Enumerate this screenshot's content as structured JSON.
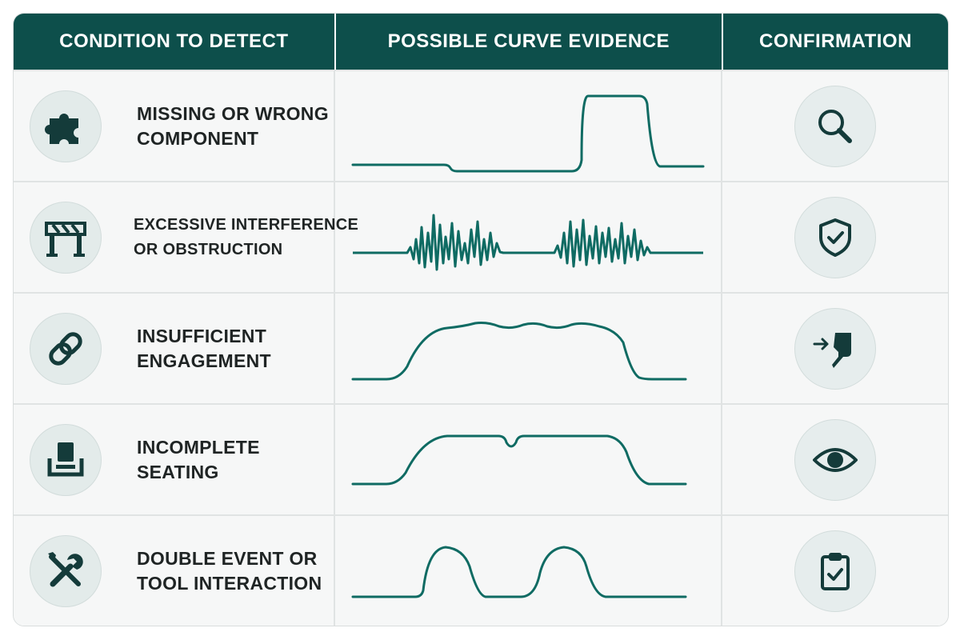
{
  "colors": {
    "header_bg": "#0d4f4b",
    "accent": "#0f6b63",
    "icon_dark": "#143b3a",
    "row_bg": "#f6f7f7"
  },
  "headers": {
    "condition": "CONDITION TO DETECT",
    "evidence": "POSSIBLE CURVE EVIDENCE",
    "confirmation": "CONFIRMATION"
  },
  "rows": [
    {
      "icon": "puzzle-piece-icon",
      "label_lines": [
        "MISSING OR WRONG",
        "COMPONENT"
      ],
      "curve": "step-up-plateau",
      "confirm_icon": "magnifier-icon"
    },
    {
      "icon": "barrier-icon",
      "label_lines": [
        "EXCESSIVE INTERFERENCE",
        "OR OBSTRUCTION"
      ],
      "curve": "noisy-bursts",
      "confirm_icon": "shield-check-icon"
    },
    {
      "icon": "chain-link-icon",
      "label_lines": [
        "INSUFFICIENT",
        "ENGAGEMENT"
      ],
      "curve": "wavy-plateau",
      "confirm_icon": "insert-arrow-icon"
    },
    {
      "icon": "seat-icon",
      "label_lines": [
        "INCOMPLETE",
        "SEATING"
      ],
      "curve": "plateau-with-dip",
      "confirm_icon": "eye-icon"
    },
    {
      "icon": "wrench-screwdriver-icon",
      "label_lines": [
        "DOUBLE EVENT OR",
        "TOOL INTERACTION"
      ],
      "curve": "double-peak",
      "confirm_icon": "clipboard-check-icon"
    }
  ]
}
